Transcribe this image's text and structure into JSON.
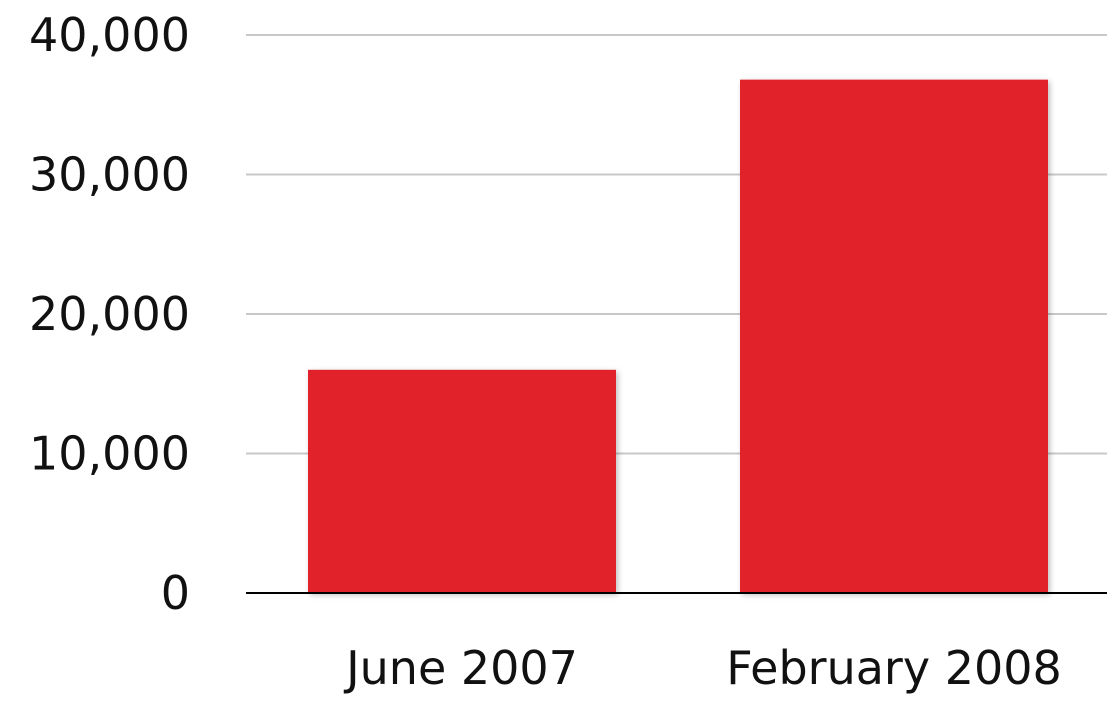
{
  "chart_data": {
    "type": "bar",
    "categories": [
      "June 2007",
      "February 2008"
    ],
    "values": [
      16000,
      36800
    ],
    "ylim": [
      0,
      40000
    ],
    "yticks": [
      0,
      10000,
      20000,
      30000,
      40000
    ],
    "ytick_labels": [
      "0",
      "10,000",
      "20,000",
      "30,000",
      "40,000"
    ],
    "grid": true,
    "bar_color": "#e2242a",
    "gridline_color": "#c8c8c8",
    "baseline_color": "#000000"
  }
}
